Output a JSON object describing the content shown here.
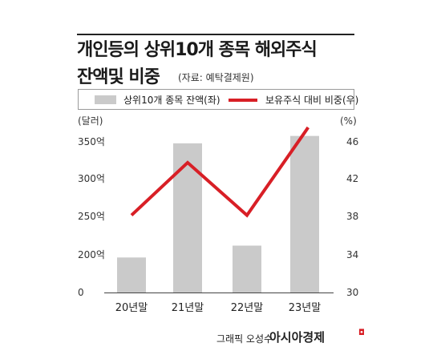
{
  "header": {
    "title_line1": "개인등의 상위10개 종목 해외주식",
    "title_line2": "잔액및 비중",
    "source": "(자료: 예탁결제원)"
  },
  "footer": {
    "credit": "그래픽 오성수",
    "brand": "아시아경제"
  },
  "colors": {
    "bar": "#cacaca",
    "line": "#d81f26",
    "text": "#1a1a1a"
  },
  "chart_data": {
    "type": "bar",
    "categories": [
      "20년말",
      "21년말",
      "22년말",
      "23년말"
    ],
    "series": [
      {
        "name": "상위10개 종목 잔액(좌)",
        "type": "bar",
        "axis": "left",
        "values": [
          186,
          348,
          212,
          358
        ]
      },
      {
        "name": "보유주식 대비 비중(우)",
        "type": "line",
        "axis": "right",
        "values": [
          38.2,
          43.8,
          38.2,
          47.0
        ]
      }
    ],
    "y_left": {
      "unit_label": "(달러)",
      "ticks": [
        0,
        200,
        250,
        300,
        350
      ],
      "tick_labels": [
        "0",
        "200억",
        "250억",
        "300억",
        "350억"
      ],
      "axis_break": true
    },
    "y_right": {
      "unit_label": "(%)",
      "ticks": [
        30,
        34,
        38,
        42,
        46
      ],
      "tick_labels": [
        "30",
        "34",
        "38",
        "42",
        "46"
      ]
    },
    "grid": false,
    "legend_position": "top"
  }
}
